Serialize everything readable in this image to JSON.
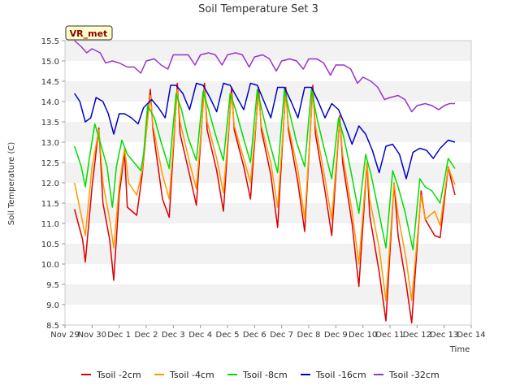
{
  "chart_data": {
    "type": "line",
    "title": "Soil Temperature Set 3",
    "xlabel": "Time",
    "ylabel": "Soil Temperature (C)",
    "ylim": [
      8.5,
      15.5
    ],
    "xlim": [
      0,
      15
    ],
    "yticks": [
      8.5,
      9.0,
      9.5,
      10.0,
      10.5,
      11.0,
      11.5,
      12.0,
      12.5,
      13.0,
      13.5,
      14.0,
      14.5,
      15.0,
      15.5
    ],
    "xticks": [
      {
        "v": 0,
        "label": "Nov 29"
      },
      {
        "v": 1,
        "label": "Nov 30"
      },
      {
        "v": 2,
        "label": "Dec 1"
      },
      {
        "v": 3,
        "label": "Dec 2"
      },
      {
        "v": 4,
        "label": "Dec 3"
      },
      {
        "v": 5,
        "label": "Dec 4"
      },
      {
        "v": 6,
        "label": "Dec 5"
      },
      {
        "v": 7,
        "label": "Dec 6"
      },
      {
        "v": 8,
        "label": "Dec 7"
      },
      {
        "v": 9,
        "label": "Dec 8"
      },
      {
        "v": 10,
        "label": "Dec 9"
      },
      {
        "v": 11,
        "label": "Dec 10"
      },
      {
        "v": 12,
        "label": "Dec 11"
      },
      {
        "v": 13,
        "label": "Dec 12"
      },
      {
        "v": 14,
        "label": "Dec 13"
      },
      {
        "v": 15,
        "label": "Dec 14"
      }
    ],
    "grid": "horizontal bands",
    "badge": {
      "text": "VR_met",
      "text_color": "#8b0000",
      "fill": "#ffffcc"
    },
    "legend_position": "bottom",
    "series": [
      {
        "name": "Tsoil -2cm",
        "color": "#dd0000",
        "x": [
          0.35,
          0.65,
          0.75,
          1.0,
          1.25,
          1.4,
          1.65,
          1.8,
          2.0,
          2.2,
          2.3,
          2.65,
          2.85,
          3.15,
          3.25,
          3.6,
          3.85,
          4.15,
          4.25,
          4.6,
          4.85,
          5.15,
          5.25,
          5.6,
          5.85,
          6.15,
          6.25,
          6.6,
          6.85,
          7.15,
          7.25,
          7.6,
          7.85,
          8.15,
          8.25,
          8.6,
          8.85,
          9.15,
          9.25,
          9.6,
          9.85,
          10.15,
          10.25,
          10.6,
          10.85,
          11.15,
          11.25,
          11.6,
          11.85,
          12.15,
          12.3,
          12.6,
          12.8,
          13.15,
          13.3,
          13.65,
          13.85,
          14.15,
          14.25,
          14.4
        ],
        "y": [
          11.35,
          10.6,
          10.05,
          11.9,
          13.35,
          11.5,
          10.6,
          9.6,
          11.7,
          12.75,
          11.4,
          11.2,
          12.2,
          14.3,
          13.3,
          11.6,
          11.15,
          14.45,
          13.2,
          12.2,
          11.45,
          14.45,
          13.3,
          12.3,
          11.3,
          14.35,
          13.3,
          12.4,
          11.6,
          14.35,
          13.3,
          12.2,
          10.9,
          14.35,
          13.3,
          12.0,
          10.8,
          14.4,
          13.2,
          11.8,
          10.7,
          13.65,
          12.5,
          11.0,
          9.45,
          12.5,
          11.2,
          9.8,
          8.6,
          12.0,
          10.7,
          9.5,
          8.55,
          11.8,
          11.1,
          10.7,
          10.65,
          12.4,
          12.1,
          11.7
        ]
      },
      {
        "name": "Tsoil -4cm",
        "color": "#ff9900",
        "x": [
          0.35,
          0.6,
          0.75,
          1.0,
          1.25,
          1.4,
          1.65,
          1.8,
          2.0,
          2.2,
          2.35,
          2.65,
          2.85,
          3.15,
          3.25,
          3.6,
          3.85,
          4.15,
          4.25,
          4.6,
          4.85,
          5.15,
          5.25,
          5.6,
          5.85,
          6.15,
          6.25,
          6.6,
          6.85,
          7.15,
          7.25,
          7.6,
          7.85,
          8.15,
          8.25,
          8.6,
          8.85,
          9.15,
          9.25,
          9.6,
          9.85,
          10.15,
          10.25,
          10.6,
          10.85,
          11.15,
          11.25,
          11.6,
          11.85,
          12.15,
          12.3,
          12.6,
          12.8,
          13.15,
          13.3,
          13.65,
          13.85,
          14.15,
          14.25,
          14.4
        ],
        "y": [
          12.0,
          11.2,
          10.7,
          12.4,
          13.3,
          12.0,
          11.1,
          10.4,
          11.9,
          12.85,
          12.0,
          11.7,
          12.3,
          14.15,
          13.4,
          12.2,
          11.6,
          14.3,
          13.5,
          12.5,
          11.85,
          14.3,
          13.5,
          12.6,
          11.75,
          14.2,
          13.4,
          12.6,
          12.0,
          14.2,
          13.4,
          12.5,
          11.4,
          14.2,
          13.4,
          12.3,
          11.1,
          14.25,
          13.4,
          12.1,
          11.1,
          13.6,
          12.7,
          11.3,
          10.0,
          12.5,
          11.6,
          10.4,
          9.1,
          12.0,
          11.2,
          10.1,
          9.1,
          11.7,
          11.1,
          11.3,
          10.95,
          12.4,
          12.2,
          11.95
        ]
      },
      {
        "name": "Tsoil -8cm",
        "color": "#00dd00",
        "x": [
          0.35,
          0.6,
          0.75,
          0.9,
          1.1,
          1.3,
          1.55,
          1.75,
          1.9,
          2.1,
          2.3,
          2.55,
          2.8,
          2.9,
          3.05,
          3.3,
          3.55,
          3.85,
          4.1,
          4.3,
          4.55,
          4.85,
          5.1,
          5.3,
          5.55,
          5.85,
          6.1,
          6.3,
          6.55,
          6.85,
          7.1,
          7.3,
          7.55,
          7.85,
          8.1,
          8.3,
          8.55,
          8.85,
          9.1,
          9.3,
          9.55,
          9.85,
          10.1,
          10.3,
          10.55,
          10.85,
          11.1,
          11.3,
          11.55,
          11.85,
          12.1,
          12.3,
          12.55,
          12.85,
          13.1,
          13.3,
          13.55,
          13.85,
          14.15,
          14.4
        ],
        "y": [
          12.9,
          12.4,
          11.9,
          12.6,
          13.45,
          13.0,
          12.4,
          11.4,
          12.4,
          13.05,
          12.7,
          12.5,
          12.3,
          12.7,
          13.9,
          13.6,
          13.0,
          12.35,
          14.2,
          13.8,
          13.1,
          12.55,
          14.25,
          13.8,
          13.2,
          12.55,
          14.2,
          13.8,
          13.2,
          12.5,
          14.3,
          13.7,
          13.0,
          12.25,
          14.3,
          13.7,
          13.0,
          12.4,
          14.3,
          13.6,
          12.9,
          12.1,
          13.6,
          13.1,
          12.3,
          11.25,
          12.7,
          12.2,
          11.4,
          10.4,
          12.3,
          11.9,
          11.3,
          10.35,
          12.1,
          11.9,
          11.8,
          11.5,
          12.6,
          12.35
        ]
      },
      {
        "name": "Tsoil -16cm",
        "color": "#0000cc",
        "x": [
          0.35,
          0.55,
          0.75,
          0.95,
          1.15,
          1.4,
          1.6,
          1.8,
          2.0,
          2.2,
          2.45,
          2.7,
          2.9,
          3.05,
          3.2,
          3.45,
          3.7,
          3.9,
          4.1,
          4.35,
          4.6,
          4.85,
          5.1,
          5.35,
          5.6,
          5.85,
          6.1,
          6.35,
          6.6,
          6.85,
          7.1,
          7.35,
          7.6,
          7.85,
          8.1,
          8.35,
          8.6,
          8.85,
          9.1,
          9.35,
          9.6,
          9.85,
          10.1,
          10.35,
          10.6,
          10.85,
          11.1,
          11.35,
          11.6,
          11.85,
          12.1,
          12.35,
          12.6,
          12.85,
          13.1,
          13.35,
          13.6,
          13.85,
          14.15,
          14.4
        ],
        "y": [
          14.2,
          14.0,
          13.5,
          13.6,
          14.1,
          14.0,
          13.7,
          13.2,
          13.7,
          13.7,
          13.6,
          13.45,
          13.85,
          13.95,
          14.05,
          13.85,
          13.6,
          14.4,
          14.4,
          14.2,
          13.8,
          14.45,
          14.4,
          14.1,
          13.75,
          14.45,
          14.4,
          14.1,
          13.8,
          14.45,
          14.4,
          14.0,
          13.6,
          14.35,
          14.35,
          14.0,
          13.6,
          14.35,
          14.35,
          14.0,
          13.6,
          13.95,
          13.8,
          13.4,
          12.95,
          13.4,
          13.2,
          12.8,
          12.25,
          12.9,
          12.95,
          12.7,
          12.1,
          12.75,
          12.85,
          12.8,
          12.6,
          12.85,
          13.05,
          13.0
        ]
      },
      {
        "name": "Tsoil -32cm",
        "color": "#9933cc",
        "x": [
          0.35,
          0.6,
          0.8,
          1.0,
          1.3,
          1.5,
          1.75,
          2.0,
          2.3,
          2.55,
          2.8,
          3.0,
          3.3,
          3.55,
          3.8,
          4.0,
          4.3,
          4.55,
          4.8,
          5.0,
          5.3,
          5.55,
          5.8,
          6.0,
          6.3,
          6.55,
          6.8,
          7.0,
          7.3,
          7.55,
          7.8,
          8.0,
          8.3,
          8.55,
          8.8,
          9.0,
          9.3,
          9.55,
          9.8,
          10.0,
          10.3,
          10.55,
          10.8,
          11.0,
          11.3,
          11.55,
          11.8,
          12.0,
          12.3,
          12.55,
          12.8,
          13.0,
          13.3,
          13.55,
          13.8,
          14.0,
          14.2,
          14.4
        ],
        "y": [
          15.5,
          15.35,
          15.2,
          15.3,
          15.2,
          14.95,
          15.0,
          14.95,
          14.85,
          14.85,
          14.7,
          15.0,
          15.05,
          14.9,
          14.8,
          15.15,
          15.15,
          15.15,
          14.9,
          15.15,
          15.2,
          15.15,
          14.9,
          15.15,
          15.2,
          15.15,
          14.85,
          15.1,
          15.15,
          15.05,
          14.75,
          15.0,
          15.05,
          15.0,
          14.8,
          15.05,
          15.05,
          14.95,
          14.65,
          14.9,
          14.9,
          14.8,
          14.45,
          14.6,
          14.5,
          14.35,
          14.05,
          14.1,
          14.15,
          14.05,
          13.75,
          13.9,
          13.95,
          13.9,
          13.8,
          13.9,
          13.95,
          13.95
        ]
      }
    ]
  }
}
